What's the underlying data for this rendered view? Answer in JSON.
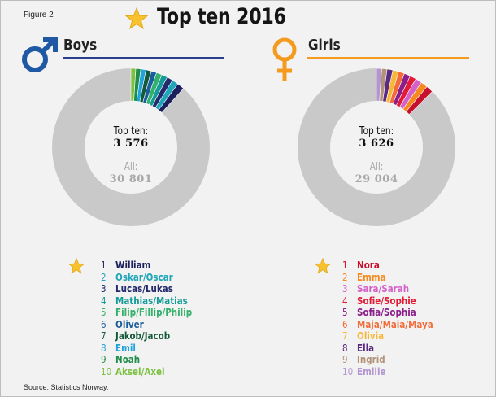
{
  "figure_label": "Figure 2",
  "title": "Top ten 2016",
  "source": "Source: Statistics Norway.",
  "colors": {
    "ring_background": "#c9c9c9",
    "boys_rule": "#2a3f8e",
    "girls_rule": "#f39a1f",
    "boys_symbol": "#1f58a3",
    "girls_symbol": "#f39a1f",
    "star": "#f7c22d"
  },
  "chart_data": [
    {
      "type": "pie",
      "heading": "Boys",
      "center_label": "Top ten:",
      "center_value": "3 576",
      "all_label": "All:",
      "all_value": "30 801",
      "total": 30801,
      "top_ten_total": 3576,
      "slice_order": [
        10,
        9,
        8,
        7,
        6,
        5,
        4,
        3,
        2,
        1
      ],
      "items": [
        {
          "rank": "1",
          "name": "William",
          "value": 445,
          "color": "#1b1f5e"
        },
        {
          "rank": "2",
          "name": "Oskar/Oscar",
          "value": 405,
          "color": "#1fa6b8"
        },
        {
          "rank": "3",
          "name": "Lucas/Lukas",
          "value": 380,
          "color": "#232a6e"
        },
        {
          "rank": "4",
          "name": "Mathias/Matias",
          "value": 365,
          "color": "#149b97"
        },
        {
          "rank": "5",
          "name": "Filip/Fillip/Philip",
          "value": 355,
          "color": "#33b06a"
        },
        {
          "rank": "6",
          "name": "Oliver",
          "value": 345,
          "color": "#1c5d9b"
        },
        {
          "rank": "7",
          "name": "Jakob/Jacob",
          "value": 335,
          "color": "#14593a"
        },
        {
          "rank": "8",
          "name": "Emil",
          "value": 325,
          "color": "#23a3dc"
        },
        {
          "rank": "9",
          "name": "Noah",
          "value": 315,
          "color": "#1e8e48"
        },
        {
          "rank": "10",
          "name": "Aksel/Axel",
          "value": 306,
          "color": "#7cc141"
        }
      ]
    },
    {
      "type": "pie",
      "heading": "Girls",
      "center_label": "Top ten:",
      "center_value": "3 626",
      "all_label": "All:",
      "all_value": "29 004",
      "total": 29004,
      "top_ten_total": 3626,
      "slice_order": [
        10,
        9,
        8,
        7,
        6,
        5,
        4,
        3,
        2,
        1
      ],
      "items": [
        {
          "rank": "1",
          "name": "Nora",
          "value": 420,
          "color": "#c8102e"
        },
        {
          "rank": "2",
          "name": "Emma",
          "value": 400,
          "color": "#f68a1e"
        },
        {
          "rank": "3",
          "name": "Sara/Sarah",
          "value": 390,
          "color": "#d660c9"
        },
        {
          "rank": "4",
          "name": "Sofie/Sophie",
          "value": 375,
          "color": "#e21a36"
        },
        {
          "rank": "5",
          "name": "Sofia/Sophia",
          "value": 365,
          "color": "#8c1e8c"
        },
        {
          "rank": "6",
          "name": "Maja/Maia/Maya",
          "value": 360,
          "color": "#f26c3a"
        },
        {
          "rank": "7",
          "name": "Olivia",
          "value": 350,
          "color": "#f7b83a"
        },
        {
          "rank": "8",
          "name": "Ella",
          "value": 340,
          "color": "#5b2a84"
        },
        {
          "rank": "9",
          "name": "Ingrid",
          "value": 320,
          "color": "#b3927a"
        },
        {
          "rank": "10",
          "name": "Emilie",
          "value": 306,
          "color": "#b495cf"
        }
      ]
    }
  ]
}
